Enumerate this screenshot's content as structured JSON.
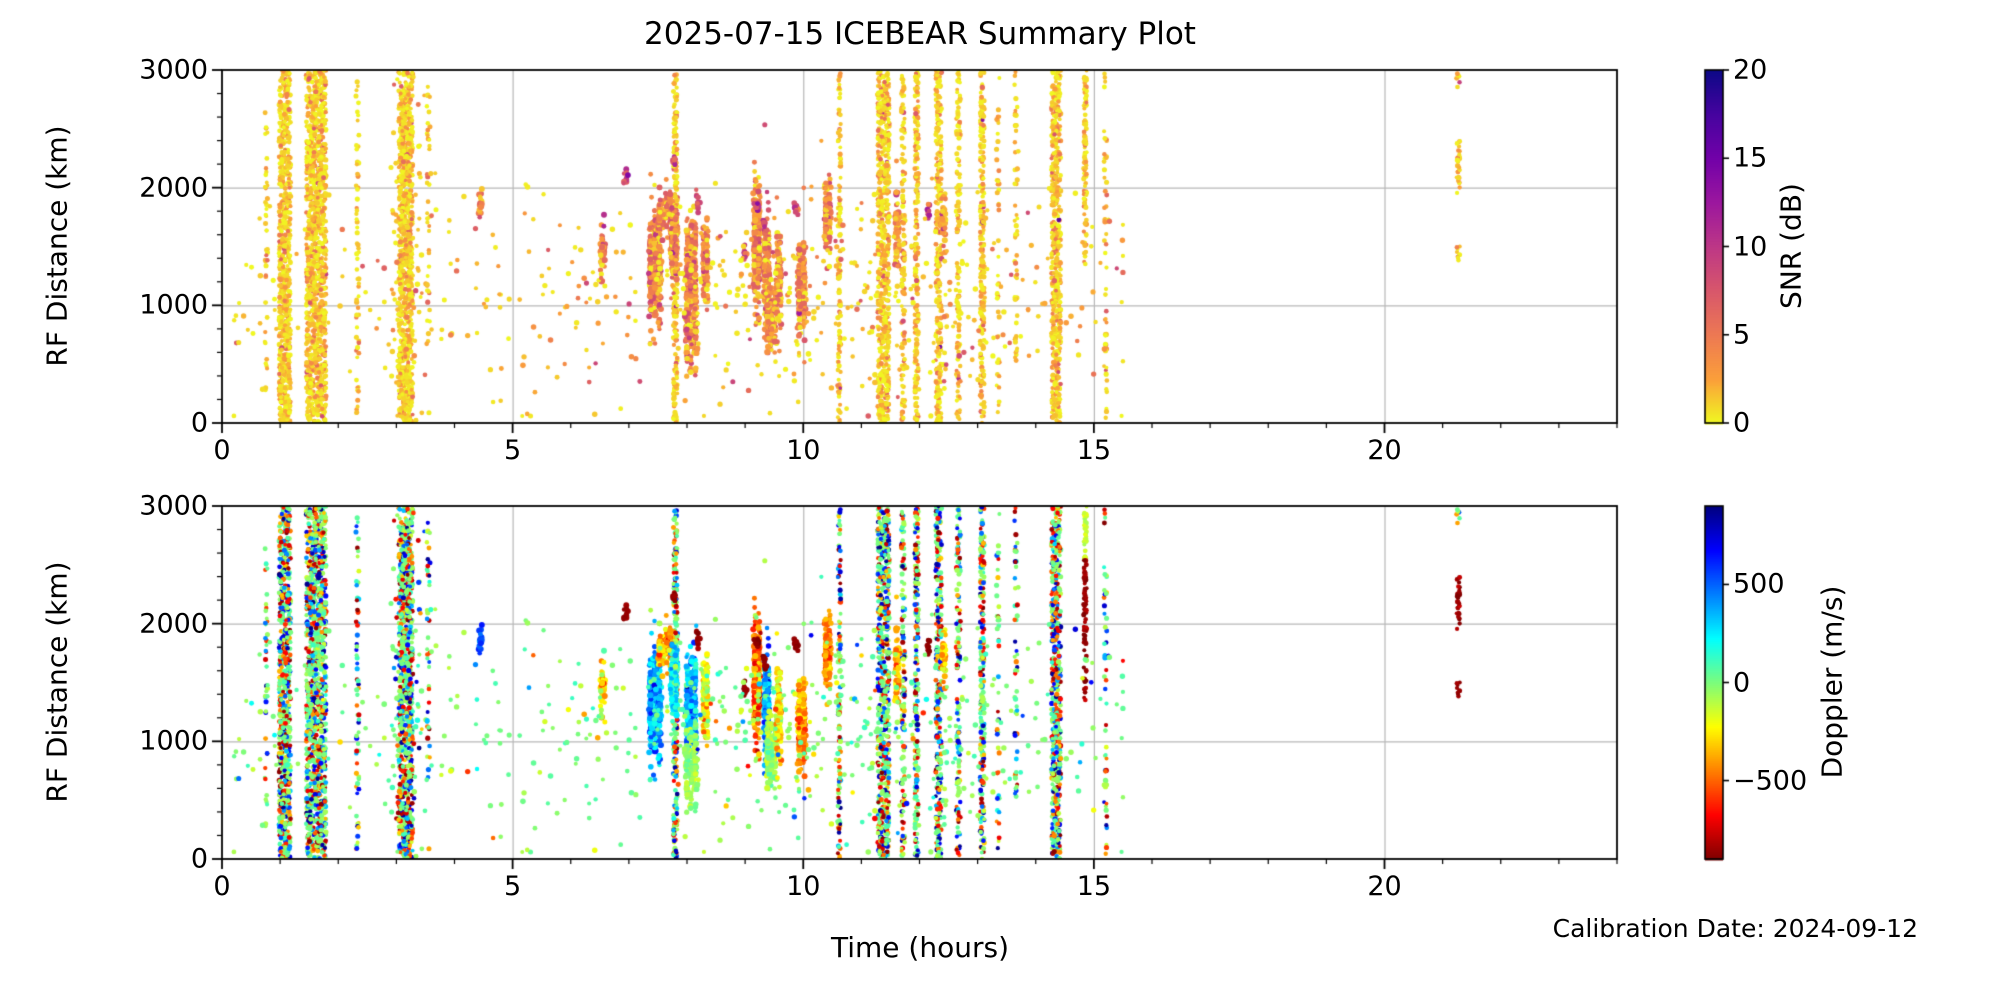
{
  "chart_data": {
    "type": "scatter",
    "title": "2025-07-15 ICEBEAR Summary Plot",
    "xlabel": "Time (hours)",
    "annotation": "Calibration Date: 2024-09-12",
    "x_range": [
      0,
      24
    ],
    "x_major_ticks": [
      0,
      5,
      10,
      15,
      20
    ],
    "x_tick_labels": [
      "0",
      "5",
      "10",
      "15",
      "20"
    ],
    "x_minor_step": 1,
    "grid_color": "#b8b8b8",
    "panels": [
      {
        "id": "snr-panel",
        "ylabel": "RF Distance (km)",
        "y_range": [
          0,
          3000
        ],
        "y_ticks": [
          0,
          1000,
          2000,
          3000
        ],
        "y_tick_labels": [
          "0",
          "1000",
          "2000",
          "3000"
        ],
        "y_minor_step": 200,
        "color_by": "snr",
        "colorbar": {
          "label": "SNR (dB)",
          "range": [
            0,
            20
          ],
          "ticks": [
            0,
            5,
            10,
            15,
            20
          ],
          "tick_labels": [
            "0",
            "5",
            "10",
            "15",
            "20"
          ],
          "colormap": "plasma_r"
        }
      },
      {
        "id": "doppler-panel",
        "ylabel": "RF Distance (km)",
        "y_range": [
          0,
          3000
        ],
        "y_ticks": [
          0,
          1000,
          2000,
          3000
        ],
        "y_tick_labels": [
          "0",
          "1000",
          "2000",
          "3000"
        ],
        "y_minor_step": 200,
        "color_by": "doppler",
        "colorbar": {
          "label": "Doppler (m/s)",
          "range": [
            -900,
            900
          ],
          "ticks": [
            500,
            0,
            -500
          ],
          "tick_labels": [
            "500",
            "0",
            "−500"
          ],
          "colormap": "jet_r"
        }
      }
    ],
    "colormaps": {
      "plasma_r": [
        [
          0,
          "#f0f921"
        ],
        [
          0.125,
          "#fb9f3a"
        ],
        [
          0.25,
          "#ed7953"
        ],
        [
          0.375,
          "#d8576b"
        ],
        [
          0.5,
          "#bd3786"
        ],
        [
          0.625,
          "#9c179e"
        ],
        [
          0.75,
          "#7201a8"
        ],
        [
          0.875,
          "#46039f"
        ],
        [
          1,
          "#0d0887"
        ]
      ],
      "jet_r": [
        [
          0,
          "#7f0000"
        ],
        [
          0.125,
          "#ff0000"
        ],
        [
          0.25,
          "#ff7f00"
        ],
        [
          0.375,
          "#ffff00"
        ],
        [
          0.5,
          "#7cfd7c"
        ],
        [
          0.625,
          "#00ffff"
        ],
        [
          0.75,
          "#007fff"
        ],
        [
          0.875,
          "#0000ff"
        ],
        [
          1,
          "#00007f"
        ]
      ]
    },
    "content": {
      "seed": 1337,
      "stripes": [
        {
          "t": 0.76,
          "w": 0.05,
          "d": 0.22,
          "rf": [
            250,
            3000
          ]
        },
        {
          "t": 1.08,
          "w": 0.2,
          "d": 1.0,
          "rf": [
            0,
            3000
          ]
        },
        {
          "t": 1.62,
          "w": 0.34,
          "d": 1.0,
          "rf": [
            0,
            3000
          ]
        },
        {
          "t": 2.33,
          "w": 0.05,
          "d": 0.3,
          "rf": [
            0,
            3000
          ]
        },
        {
          "t": 3.16,
          "w": 0.24,
          "d": 1.0,
          "rf": [
            0,
            3000
          ],
          "halo": 0.35
        },
        {
          "t": 3.55,
          "w": 0.05,
          "d": 0.22,
          "rf": [
            600,
            3000
          ]
        },
        {
          "t": 7.8,
          "w": 0.07,
          "d": 0.85,
          "rf": [
            0,
            3000
          ]
        },
        {
          "t": 10.62,
          "w": 0.05,
          "d": 0.6,
          "rf": [
            0,
            3000
          ]
        },
        {
          "t": 11.38,
          "w": 0.2,
          "d": 0.95,
          "rf": [
            0,
            3000
          ]
        },
        {
          "t": 11.72,
          "w": 0.06,
          "d": 0.55,
          "rf": [
            0,
            3000
          ]
        },
        {
          "t": 11.95,
          "w": 0.06,
          "d": 0.85,
          "rf": [
            0,
            3000
          ]
        },
        {
          "t": 12.33,
          "w": 0.1,
          "d": 0.8,
          "rf": [
            0,
            3000
          ]
        },
        {
          "t": 12.67,
          "w": 0.07,
          "d": 0.5,
          "rf": [
            0,
            3000
          ]
        },
        {
          "t": 13.08,
          "w": 0.07,
          "d": 0.85,
          "rf": [
            0,
            3000
          ]
        },
        {
          "t": 13.35,
          "w": 0.05,
          "d": 0.2,
          "rf": [
            0,
            3000
          ]
        },
        {
          "t": 13.66,
          "w": 0.05,
          "d": 0.3,
          "rf": [
            500,
            3000
          ]
        },
        {
          "t": 14.35,
          "w": 0.16,
          "d": 0.95,
          "rf": [
            0,
            3000
          ]
        },
        {
          "t": 14.85,
          "w": 0.055,
          "d": 0.95,
          "segments": [
            {
              "rf": [
                2550,
                3000
              ],
              "dop": -130,
              "d": 0.9
            },
            {
              "rf": [
                1950,
                2550
              ],
              "dop": -860,
              "d": 0.95
            },
            {
              "rf": [
                1350,
                1950
              ],
              "dop": -860,
              "d": 0.45
            }
          ]
        },
        {
          "t": 15.2,
          "w": 0.05,
          "d": 0.22,
          "rf": [
            0,
            3000
          ]
        },
        {
          "t": 21.27,
          "w": 0.06,
          "d": 0.9,
          "segments": [
            {
              "rf": [
                2840,
                3000
              ],
              "d": 0.45
            },
            {
              "rf": [
                2030,
                2400
              ],
              "dop": -860,
              "d": 0.95
            },
            {
              "rf": [
                1930,
                2010
              ],
              "dop": -860,
              "d": 0.35
            },
            {
              "rf": [
                1380,
                1500
              ],
              "dop": -860,
              "d": 0.9
            }
          ]
        }
      ],
      "clusters": [
        {
          "t": 4.45,
          "dt": 0.05,
          "rf": 1850,
          "drf": 60,
          "n": 22,
          "dop": 520,
          "ds": 60
        },
        {
          "t": 6.55,
          "dt": 0.08,
          "rf": 1450,
          "drf": 110,
          "n": 45,
          "dop": -260,
          "ds": 120
        },
        {
          "t": 7.45,
          "dt": 0.22,
          "rf": 1330,
          "drf": 220,
          "n": 380,
          "dop": 380,
          "ds": 140
        },
        {
          "t": 7.62,
          "dt": 0.25,
          "rf": 1760,
          "drf": 110,
          "n": 90,
          "dop": -380,
          "ds": 120
        },
        {
          "t": 7.78,
          "dt": 0.13,
          "rf": 1500,
          "drf": 150,
          "n": 150,
          "dop": 260,
          "ds": 130
        },
        {
          "t": 8.07,
          "dt": 0.18,
          "rf": 1280,
          "drf": 230,
          "n": 280,
          "dop": 340,
          "ds": 150
        },
        {
          "t": 8.07,
          "dt": 0.22,
          "rf": 770,
          "drf": 170,
          "n": 140,
          "dop": -40,
          "ds": 60
        },
        {
          "t": 8.32,
          "dt": 0.1,
          "rf": 1350,
          "drf": 170,
          "n": 110,
          "dop": -220,
          "ds": 140
        },
        {
          "t": 9.2,
          "dt": 0.13,
          "rf": 1550,
          "drf": 270,
          "n": 230,
          "dop": -480,
          "ds": 160
        },
        {
          "t": 9.37,
          "dt": 0.1,
          "rf": 1300,
          "drf": 190,
          "n": 190,
          "dop": 430,
          "ds": 130
        },
        {
          "t": 9.45,
          "dt": 0.18,
          "rf": 900,
          "drf": 140,
          "n": 130,
          "dop": -60,
          "ds": 70
        },
        {
          "t": 9.58,
          "dt": 0.09,
          "rf": 1230,
          "drf": 180,
          "n": 110,
          "dop": -280,
          "ds": 120
        },
        {
          "t": 9.97,
          "dt": 0.15,
          "rf": 1120,
          "drf": 190,
          "n": 190,
          "dop": -420,
          "ds": 130
        },
        {
          "t": 10.42,
          "dt": 0.12,
          "rf": 1750,
          "drf": 140,
          "n": 110,
          "dop": -430,
          "ds": 110
        },
        {
          "t": 11.62,
          "dt": 0.08,
          "rf": 1620,
          "drf": 180,
          "n": 70,
          "dop": -380,
          "ds": 110
        },
        {
          "t": 12.42,
          "dt": 0.06,
          "rf": 1700,
          "drf": 110,
          "n": 35,
          "dop": -320,
          "ds": 100
        }
      ],
      "dark_spots": [
        [
          6.95,
          2090
        ],
        [
          7.78,
          2230
        ],
        [
          8.18,
          1880
        ],
        [
          9.0,
          1450
        ],
        [
          9.2,
          1855
        ],
        [
          9.34,
          1680
        ],
        [
          9.88,
          1820
        ],
        [
          12.15,
          1790
        ]
      ],
      "background": {
        "n": 560,
        "t_range": [
          0.2,
          15.5
        ],
        "rf_mean": 1100,
        "rf_sd": 480
      }
    }
  }
}
